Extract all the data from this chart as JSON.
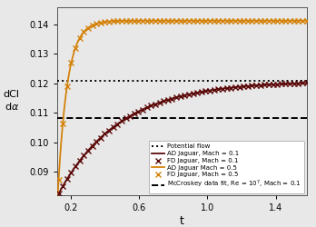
{
  "xlim": [
    0.12,
    1.58
  ],
  "ylim": [
    0.082,
    0.146
  ],
  "xlabel": "t",
  "ylabel_line1": "dCl",
  "ylabel_line2": "dα",
  "potential_flow_value": 0.1208,
  "mccroskey_value": 0.1082,
  "ad_mach01_asymptote": 0.1208,
  "ad_mach05_asymptote": 0.1413,
  "ad_mach01_k": 2.8,
  "ad_mach05_k": 18.0,
  "curve_start": 0.125,
  "color_mach01": "#5c0a0a",
  "color_mach05": "#d4820a",
  "color_potential": "#000000",
  "color_mccroskey": "#000000",
  "bg_color": "#e8e8e8",
  "legend_labels": [
    "Potential flow",
    "AD Jaguar, Mach = 0.1",
    "FD Jaguar, Mach = 0.1",
    "AD Jaguar Mach = 0.5",
    "FD Jaguar, Mach = 0.5",
    "McCroskey data fit, Re = $10^7$, Mach = 0.1"
  ],
  "xticks": [
    0.2,
    0.6,
    1.0,
    1.4
  ],
  "yticks": [
    0.09,
    0.1,
    0.11,
    0.12,
    0.13,
    0.14
  ],
  "n_fine": 600,
  "n_markers": 60,
  "marker_size": 4.5,
  "marker_lw": 1.0,
  "line_width": 1.3
}
